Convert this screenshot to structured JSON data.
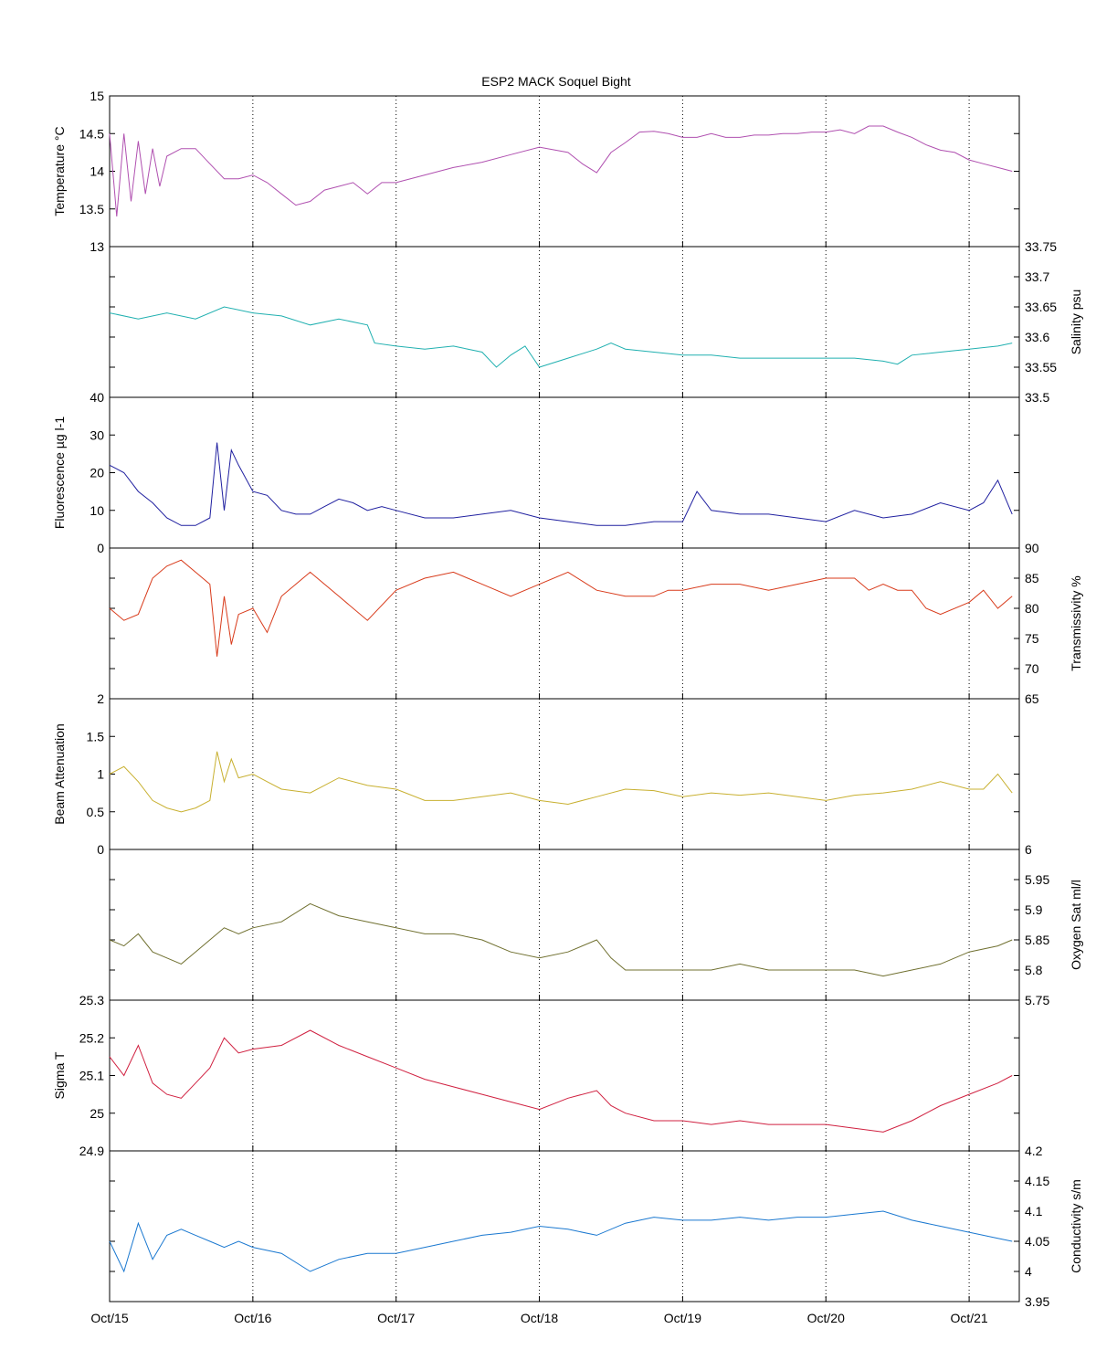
{
  "title": "ESP2 MACK  Soquel Bight",
  "x_tick_labels": [
    "Oct/15",
    "Oct/16",
    "Oct/17",
    "Oct/18",
    "Oct/19",
    "Oct/20",
    "Oct/21"
  ],
  "colors": {
    "temperature": "#b050b0",
    "salinity": "#20b0b0",
    "fluorescence": "#2020a0",
    "transmissivity": "#d83a1a",
    "beam_attenuation": "#c8b030",
    "oxygen": "#707030",
    "sigma_t": "#d02040",
    "conductivity": "#1a78d0"
  },
  "chart_data": [
    {
      "type": "line",
      "id": "temperature",
      "ylabel": "Temperature °C",
      "yaxis_side": "left",
      "ylim": [
        13,
        15
      ],
      "yticks": [
        "13",
        "13.5",
        "14",
        "14.5",
        "15"
      ],
      "grid": "x-dotted",
      "x_domain": [
        "Oct/15 00:00",
        "Oct/21 08:00"
      ],
      "x": [
        0,
        0.05,
        0.1,
        0.15,
        0.2,
        0.25,
        0.3,
        0.35,
        0.4,
        0.5,
        0.6,
        0.7,
        0.8,
        0.9,
        1.0,
        1.1,
        1.2,
        1.3,
        1.4,
        1.5,
        1.6,
        1.7,
        1.8,
        1.9,
        2.0,
        2.2,
        2.4,
        2.6,
        2.8,
        3.0,
        3.2,
        3.3,
        3.4,
        3.5,
        3.6,
        3.7,
        3.8,
        3.9,
        4.0,
        4.1,
        4.2,
        4.3,
        4.4,
        4.5,
        4.6,
        4.7,
        4.8,
        4.9,
        5.0,
        5.1,
        5.2,
        5.3,
        5.4,
        5.5,
        5.6,
        5.7,
        5.8,
        5.9,
        6.0,
        6.1,
        6.2,
        6.3
      ],
      "values": [
        14.5,
        13.4,
        14.5,
        13.6,
        14.4,
        13.7,
        14.3,
        13.8,
        14.2,
        14.3,
        14.3,
        14.1,
        13.9,
        13.9,
        13.95,
        13.85,
        13.7,
        13.55,
        13.6,
        13.75,
        13.8,
        13.85,
        13.7,
        13.85,
        13.85,
        13.95,
        14.05,
        14.12,
        14.22,
        14.32,
        14.25,
        14.1,
        13.98,
        14.25,
        14.38,
        14.52,
        14.53,
        14.5,
        14.45,
        14.45,
        14.5,
        14.45,
        14.45,
        14.48,
        14.48,
        14.5,
        14.5,
        14.52,
        14.52,
        14.55,
        14.5,
        14.6,
        14.6,
        14.52,
        14.45,
        14.35,
        14.28,
        14.25,
        14.15,
        14.1,
        14.05,
        14.0
      ]
    },
    {
      "type": "line",
      "id": "salinity",
      "ylabel": "Salinity psu",
      "yaxis_side": "right",
      "ylim": [
        33.5,
        33.75
      ],
      "yticks": [
        "33.5",
        "33.55",
        "33.6",
        "33.65",
        "33.7",
        "33.75"
      ],
      "grid": "x-dotted",
      "x_domain": [
        "Oct/15 00:00",
        "Oct/21 08:00"
      ],
      "x": [
        0,
        0.2,
        0.4,
        0.6,
        0.8,
        1.0,
        1.2,
        1.4,
        1.6,
        1.8,
        1.85,
        2.0,
        2.2,
        2.4,
        2.6,
        2.7,
        2.8,
        2.9,
        3.0,
        3.2,
        3.4,
        3.5,
        3.6,
        3.8,
        4.0,
        4.2,
        4.4,
        4.6,
        4.8,
        5.0,
        5.2,
        5.4,
        5.5,
        5.6,
        5.8,
        6.0,
        6.2,
        6.3
      ],
      "values": [
        33.64,
        33.63,
        33.64,
        33.63,
        33.65,
        33.64,
        33.635,
        33.62,
        33.63,
        33.62,
        33.59,
        33.585,
        33.58,
        33.585,
        33.575,
        33.55,
        33.57,
        33.585,
        33.55,
        33.565,
        33.58,
        33.59,
        33.58,
        33.575,
        33.57,
        33.57,
        33.565,
        33.565,
        33.565,
        33.565,
        33.565,
        33.56,
        33.555,
        33.57,
        33.575,
        33.58,
        33.585,
        33.59
      ]
    },
    {
      "type": "line",
      "id": "fluorescence",
      "ylabel": "Fluorescence µg l-1",
      "yaxis_side": "left",
      "ylim": [
        0,
        40
      ],
      "yticks": [
        "0",
        "10",
        "20",
        "30",
        "40"
      ],
      "grid": "x-dotted",
      "x_domain": [
        "Oct/15 00:00",
        "Oct/21 08:00"
      ],
      "x": [
        0,
        0.1,
        0.2,
        0.3,
        0.4,
        0.5,
        0.6,
        0.7,
        0.75,
        0.8,
        0.85,
        0.9,
        1.0,
        1.1,
        1.2,
        1.3,
        1.4,
        1.5,
        1.6,
        1.7,
        1.8,
        1.9,
        2.0,
        2.2,
        2.4,
        2.6,
        2.8,
        3.0,
        3.2,
        3.4,
        3.6,
        3.8,
        4.0,
        4.1,
        4.2,
        4.4,
        4.6,
        4.8,
        5.0,
        5.2,
        5.4,
        5.6,
        5.8,
        6.0,
        6.1,
        6.2,
        6.3
      ],
      "values": [
        22,
        20,
        15,
        12,
        8,
        6,
        6,
        8,
        28,
        10,
        26,
        22,
        15,
        14,
        10,
        9,
        9,
        11,
        13,
        12,
        10,
        11,
        10,
        8,
        8,
        9,
        10,
        8,
        7,
        6,
        6,
        7,
        7,
        15,
        10,
        9,
        9,
        8,
        7,
        10,
        8,
        9,
        12,
        10,
        12,
        18,
        9
      ]
    },
    {
      "type": "line",
      "id": "transmissivity",
      "ylabel": "Transmissivity %",
      "yaxis_side": "right",
      "ylim": [
        65,
        90
      ],
      "yticks": [
        "65",
        "70",
        "75",
        "80",
        "85",
        "90"
      ],
      "grid": "x-dotted",
      "x_domain": [
        "Oct/15 00:00",
        "Oct/21 08:00"
      ],
      "x": [
        0,
        0.1,
        0.2,
        0.3,
        0.4,
        0.5,
        0.6,
        0.7,
        0.75,
        0.8,
        0.85,
        0.9,
        1.0,
        1.1,
        1.2,
        1.4,
        1.6,
        1.8,
        2.0,
        2.2,
        2.4,
        2.6,
        2.8,
        3.0,
        3.2,
        3.4,
        3.6,
        3.8,
        3.9,
        4.0,
        4.2,
        4.4,
        4.6,
        4.8,
        5.0,
        5.2,
        5.3,
        5.4,
        5.5,
        5.6,
        5.7,
        5.8,
        6.0,
        6.1,
        6.2,
        6.3
      ],
      "values": [
        80,
        78,
        79,
        85,
        87,
        88,
        86,
        84,
        72,
        82,
        74,
        79,
        80,
        76,
        82,
        86,
        82,
        78,
        83,
        85,
        86,
        84,
        82,
        84,
        86,
        83,
        82,
        82,
        83,
        83,
        84,
        84,
        83,
        84,
        85,
        85,
        83,
        84,
        83,
        83,
        80,
        79,
        81,
        83,
        80,
        82
      ]
    },
    {
      "type": "line",
      "id": "beam_attenuation",
      "ylabel": "Beam Attenuation",
      "yaxis_side": "left",
      "ylim": [
        0,
        2
      ],
      "yticks": [
        "0",
        "0.5",
        "1",
        "1.5",
        "2"
      ],
      "grid": "x-dotted",
      "x_domain": [
        "Oct/15 00:00",
        "Oct/21 08:00"
      ],
      "x": [
        0,
        0.1,
        0.2,
        0.3,
        0.4,
        0.5,
        0.6,
        0.7,
        0.75,
        0.8,
        0.85,
        0.9,
        1.0,
        1.1,
        1.2,
        1.4,
        1.6,
        1.8,
        2.0,
        2.2,
        2.4,
        2.6,
        2.8,
        3.0,
        3.2,
        3.4,
        3.6,
        3.8,
        4.0,
        4.2,
        4.4,
        4.6,
        4.8,
        5.0,
        5.2,
        5.4,
        5.6,
        5.8,
        6.0,
        6.1,
        6.2,
        6.3
      ],
      "values": [
        1.0,
        1.1,
        0.9,
        0.65,
        0.55,
        0.5,
        0.55,
        0.65,
        1.3,
        0.9,
        1.2,
        0.95,
        1.0,
        0.9,
        0.8,
        0.75,
        0.95,
        0.85,
        0.8,
        0.65,
        0.65,
        0.7,
        0.75,
        0.65,
        0.6,
        0.7,
        0.8,
        0.78,
        0.7,
        0.75,
        0.72,
        0.75,
        0.7,
        0.65,
        0.72,
        0.75,
        0.8,
        0.9,
        0.8,
        0.8,
        1.0,
        0.75
      ]
    },
    {
      "type": "line",
      "id": "oxygen",
      "ylabel": "Oxygen Sat ml/l",
      "yaxis_side": "right",
      "ylim": [
        5.75,
        6
      ],
      "yticks": [
        "5.75",
        "5.8",
        "5.85",
        "5.9",
        "5.95",
        "6"
      ],
      "grid": "x-dotted",
      "x_domain": [
        "Oct/15 00:00",
        "Oct/21 08:00"
      ],
      "x": [
        0,
        0.1,
        0.2,
        0.3,
        0.4,
        0.5,
        0.6,
        0.7,
        0.8,
        0.9,
        1.0,
        1.2,
        1.4,
        1.6,
        1.8,
        2.0,
        2.2,
        2.4,
        2.6,
        2.8,
        3.0,
        3.2,
        3.4,
        3.5,
        3.6,
        3.8,
        4.0,
        4.2,
        4.4,
        4.6,
        4.8,
        5.0,
        5.2,
        5.4,
        5.6,
        5.8,
        6.0,
        6.2,
        6.3
      ],
      "values": [
        5.85,
        5.84,
        5.86,
        5.83,
        5.82,
        5.81,
        5.83,
        5.85,
        5.87,
        5.86,
        5.87,
        5.88,
        5.91,
        5.89,
        5.88,
        5.87,
        5.86,
        5.86,
        5.85,
        5.83,
        5.82,
        5.83,
        5.85,
        5.82,
        5.8,
        5.8,
        5.8,
        5.8,
        5.81,
        5.8,
        5.8,
        5.8,
        5.8,
        5.79,
        5.8,
        5.81,
        5.83,
        5.84,
        5.85
      ]
    },
    {
      "type": "line",
      "id": "sigma_t",
      "ylabel": "Sigma T",
      "yaxis_side": "left",
      "ylim": [
        24.9,
        25.3
      ],
      "yticks": [
        "24.9",
        "25",
        "25.1",
        "25.2",
        "25.3"
      ],
      "grid": "x-dotted",
      "x_domain": [
        "Oct/15 00:00",
        "Oct/21 08:00"
      ],
      "x": [
        0,
        0.1,
        0.2,
        0.3,
        0.4,
        0.5,
        0.6,
        0.7,
        0.8,
        0.9,
        1.0,
        1.2,
        1.4,
        1.6,
        1.8,
        2.0,
        2.2,
        2.4,
        2.6,
        2.8,
        3.0,
        3.2,
        3.4,
        3.5,
        3.6,
        3.8,
        4.0,
        4.2,
        4.4,
        4.6,
        4.8,
        5.0,
        5.2,
        5.4,
        5.6,
        5.8,
        6.0,
        6.2,
        6.3
      ],
      "values": [
        25.15,
        25.1,
        25.18,
        25.08,
        25.05,
        25.04,
        25.08,
        25.12,
        25.2,
        25.16,
        25.17,
        25.18,
        25.22,
        25.18,
        25.15,
        25.12,
        25.09,
        25.07,
        25.05,
        25.03,
        25.01,
        25.04,
        25.06,
        25.02,
        25.0,
        24.98,
        24.98,
        24.97,
        24.98,
        24.97,
        24.97,
        24.97,
        24.96,
        24.95,
        24.98,
        25.02,
        25.05,
        25.08,
        25.1
      ]
    },
    {
      "type": "line",
      "id": "conductivity",
      "ylabel": "Conductivity s/m",
      "yaxis_side": "right",
      "ylim": [
        3.95,
        4.2
      ],
      "yticks": [
        "3.95",
        "4",
        "4.05",
        "4.1",
        "4.15",
        "4.2"
      ],
      "grid": "x-dotted",
      "x_domain": [
        "Oct/15 00:00",
        "Oct/21 08:00"
      ],
      "x": [
        0,
        0.1,
        0.2,
        0.3,
        0.4,
        0.5,
        0.6,
        0.7,
        0.8,
        0.9,
        1.0,
        1.2,
        1.4,
        1.6,
        1.8,
        2.0,
        2.2,
        2.4,
        2.6,
        2.8,
        3.0,
        3.2,
        3.4,
        3.6,
        3.8,
        4.0,
        4.2,
        4.4,
        4.6,
        4.8,
        5.0,
        5.2,
        5.4,
        5.6,
        5.8,
        6.0,
        6.2,
        6.3
      ],
      "values": [
        4.05,
        4.0,
        4.08,
        4.02,
        4.06,
        4.07,
        4.06,
        4.05,
        4.04,
        4.05,
        4.04,
        4.03,
        4.0,
        4.02,
        4.03,
        4.03,
        4.04,
        4.05,
        4.06,
        4.065,
        4.075,
        4.07,
        4.06,
        4.08,
        4.09,
        4.085,
        4.085,
        4.09,
        4.085,
        4.09,
        4.09,
        4.095,
        4.1,
        4.085,
        4.075,
        4.065,
        4.055,
        4.05
      ]
    }
  ]
}
